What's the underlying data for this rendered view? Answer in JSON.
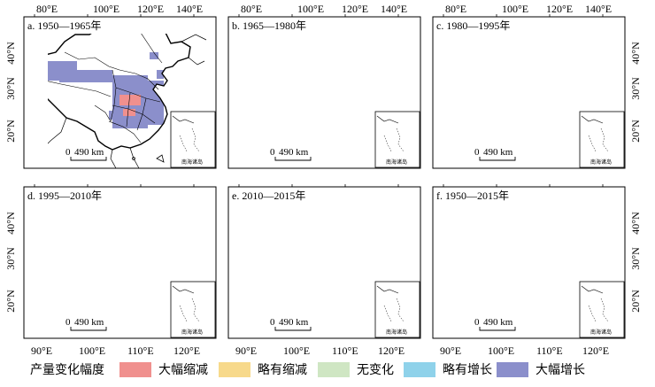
{
  "panels": [
    {
      "label": "a. 1950—1965年"
    },
    {
      "label": "b. 1965—1980年"
    },
    {
      "label": "c. 1980—1995年"
    },
    {
      "label": "d. 1995—2010年"
    },
    {
      "label": "e. 2010—2015年"
    },
    {
      "label": "f. 1950—2015年"
    }
  ],
  "axes": {
    "top_lon_ticks": [
      "80°E",
      "100°E",
      "120°E",
      "140°E"
    ],
    "bottom_lon_ticks": [
      "90°E",
      "100°E",
      "110°E",
      "120°E"
    ],
    "lat_ticks": [
      "40°N",
      "30°N",
      "20°N"
    ]
  },
  "scale_bar": {
    "zero": "0",
    "distance": "490 km"
  },
  "inset_label": "南海诸岛",
  "legend": {
    "title": "产量变化幅度",
    "items": [
      {
        "label": "大幅缩减",
        "color": "#f0908e"
      },
      {
        "label": "略有缩减",
        "color": "#f7d98b"
      },
      {
        "label": "无变化",
        "color": "#cfe6c3"
      },
      {
        "label": "略有增长",
        "color": "#8fd2ea"
      },
      {
        "label": "大幅增长",
        "color": "#8b8fcb"
      }
    ]
  }
}
